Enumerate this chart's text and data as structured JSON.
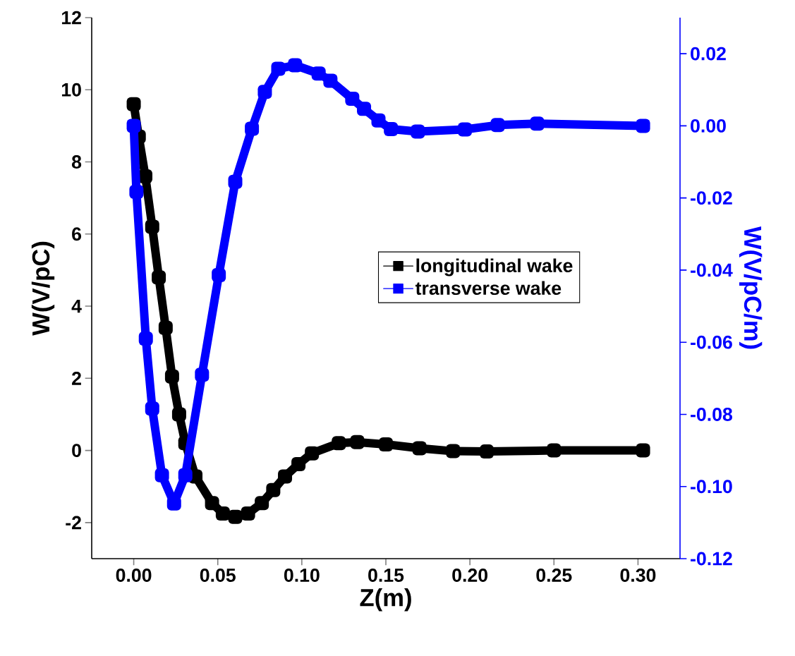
{
  "chart_data": {
    "type": "line",
    "xlabel": "Z(m)",
    "ylabel": "W(V/pC)",
    "y2label": "W(V/pC/m)",
    "xlim": [
      -0.025,
      0.325
    ],
    "ylim": [
      -3,
      12
    ],
    "y2lim": [
      -0.12,
      0.03
    ],
    "xticks": [
      {
        "value": 0,
        "label": "0.00"
      },
      {
        "value": 0.05,
        "label": "0.05"
      },
      {
        "value": 0.1,
        "label": "0.10"
      },
      {
        "value": 0.15,
        "label": "0.15"
      },
      {
        "value": 0.2,
        "label": "0.20"
      },
      {
        "value": 0.25,
        "label": "0.25"
      },
      {
        "value": 0.3,
        "label": "0.30"
      }
    ],
    "yticks": [
      -2,
      0,
      2,
      4,
      6,
      8,
      10,
      12
    ],
    "y2ticks": [
      {
        "value": -0.12,
        "label": "-0.12"
      },
      {
        "value": -0.1,
        "label": "-0.10"
      },
      {
        "value": -0.08,
        "label": "-0.08"
      },
      {
        "value": -0.06,
        "label": "-0.06"
      },
      {
        "value": -0.04,
        "label": "-0.04"
      },
      {
        "value": -0.02,
        "label": "-0.02"
      },
      {
        "value": 0,
        "label": "0.00"
      },
      {
        "value": 0.02,
        "label": "0.02"
      }
    ],
    "marker": "square",
    "line_style": "solid",
    "legend": "right",
    "series": [
      {
        "name": "longitudinal wake",
        "color": "#000000",
        "axis": "y",
        "x": [
          0,
          0.003,
          0.0069,
          0.011,
          0.0149,
          0.019,
          0.0228,
          0.027,
          0.0307,
          0.0367,
          0.0466,
          0.053,
          0.0604,
          0.068,
          0.0762,
          0.083,
          0.09,
          0.098,
          0.106,
          0.122,
          0.133,
          0.15,
          0.17,
          0.19,
          0.21,
          0.25,
          0.303
        ],
        "values": [
          9.6,
          8.7,
          7.6,
          6.2,
          4.8,
          3.4,
          2.05,
          1.0,
          0.2,
          -0.72,
          -1.46,
          -1.75,
          -1.84,
          -1.75,
          -1.46,
          -1.1,
          -0.72,
          -0.38,
          -0.08,
          0.2,
          0.23,
          0.17,
          0.06,
          -0.02,
          -0.03,
          0.0,
          0.0
        ]
      },
      {
        "name": "transverse wake",
        "color": "#0000ff",
        "axis": "y2",
        "x": [
          0,
          0.0016,
          0.0072,
          0.011,
          0.0168,
          0.024,
          0.0307,
          0.0406,
          0.0506,
          0.0604,
          0.0703,
          0.078,
          0.086,
          0.096,
          0.11,
          0.117,
          0.13,
          0.137,
          0.1456,
          0.153,
          0.169,
          0.197,
          0.2165,
          0.24,
          0.303
        ],
        "values": [
          0,
          -0.0183,
          -0.059,
          -0.0784,
          -0.0969,
          -0.1047,
          -0.0969,
          -0.069,
          -0.0414,
          -0.0155,
          -0.0008,
          0.0094,
          0.0158,
          0.0168,
          0.0145,
          0.0125,
          0.0075,
          0.0047,
          0.0015,
          -0.0009,
          -0.0016,
          -0.001,
          0.0002,
          0.0006,
          0.0
        ]
      }
    ]
  }
}
